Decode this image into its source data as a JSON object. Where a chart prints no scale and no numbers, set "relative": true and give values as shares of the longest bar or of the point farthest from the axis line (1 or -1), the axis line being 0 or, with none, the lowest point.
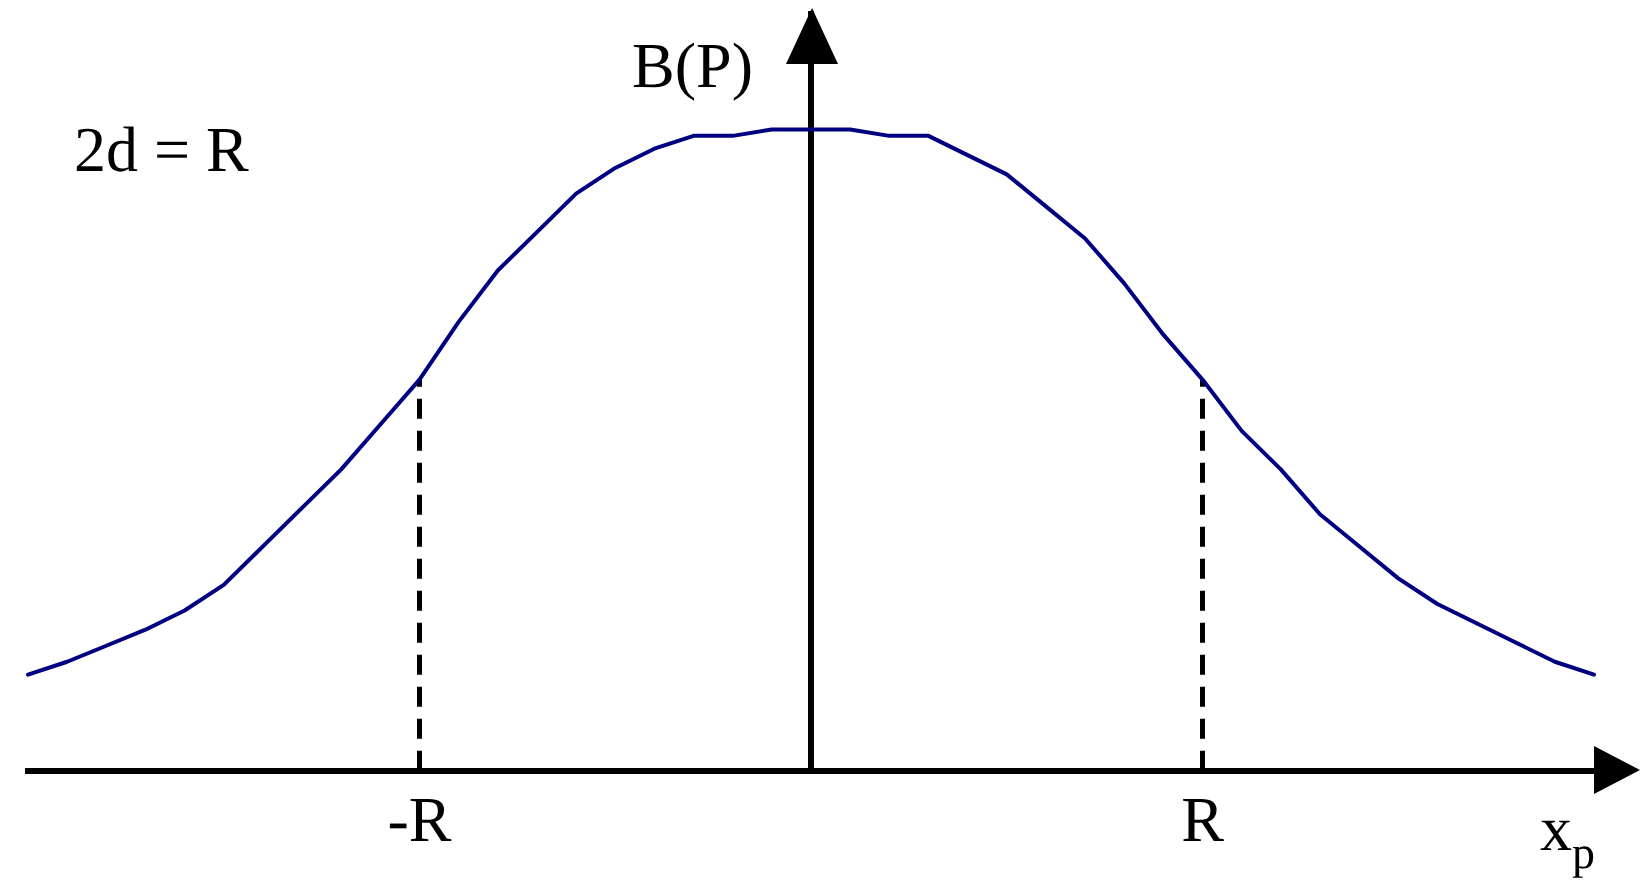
{
  "chart_data": {
    "type": "line",
    "relative": true,
    "categories": [
      null,
      null,
      null,
      null,
      null,
      null,
      null,
      null,
      null,
      null,
      "-R",
      null,
      null,
      null,
      null,
      null,
      null,
      null,
      null,
      null,
      null,
      null,
      null,
      null,
      null,
      null,
      null,
      null,
      null,
      null,
      "R",
      null,
      null,
      null,
      null,
      null,
      null,
      null,
      null,
      null,
      null
    ],
    "series": [
      {
        "color": "#000080",
        "values": [
          0.15,
          0.17,
          0.195,
          0.22,
          0.25,
          0.29,
          0.35,
          0.41,
          0.47,
          0.54,
          0.61,
          0.7,
          0.78,
          0.84,
          0.9,
          0.94,
          0.97,
          0.99,
          0.99,
          1,
          1,
          1,
          0.99,
          0.99,
          0.96,
          0.93,
          0.88,
          0.83,
          0.76,
          0.68,
          0.61,
          0.53,
          0.47,
          0.4,
          0.35,
          0.3,
          0.26,
          0.23,
          0.2,
          0.17,
          0.15
        ]
      }
    ],
    "xlabel": "x$_{p}$",
    "ylabel": "B(P)",
    "annotations": [
      "2d = R"
    ],
    "ref_lines": [
      {
        "axis": "x",
        "value": "-R",
        "line_style": "dashed",
        "color": "#000000"
      },
      {
        "axis": "x",
        "value": "R",
        "line_style": "dashed",
        "color": "#000000"
      }
    ],
    "marker": "none"
  }
}
